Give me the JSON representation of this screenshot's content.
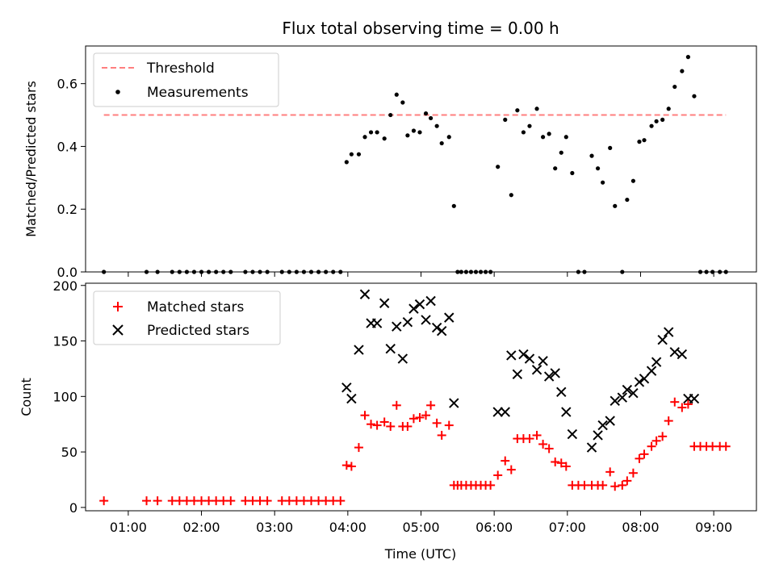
{
  "chart_data": [
    {
      "type": "scatter",
      "title": "Flux total observing time = 0.00 h",
      "xlabel": "",
      "ylabel": "Matched/Predicted stars",
      "xlim": [
        "00:25",
        "09:35"
      ],
      "ylim": [
        0,
        0.72
      ],
      "yticks": [
        0.0,
        0.2,
        0.4,
        0.6
      ],
      "ytick_labels": [
        "0.0",
        "0.2",
        "0.4",
        "0.6"
      ],
      "legend_position": "upper-left",
      "threshold": {
        "name": "Threshold",
        "y": 0.5,
        "x_start": "00:40",
        "x_end": "09:10",
        "color": "#ff7f7f",
        "style": "dashed"
      },
      "series": [
        {
          "name": "Measurements",
          "color": "#000000",
          "marker": "dot",
          "x": [
            "00:40",
            "01:15",
            "01:24",
            "01:36",
            "01:42",
            "01:48",
            "01:54",
            "02:00",
            "02:06",
            "02:12",
            "02:18",
            "02:24",
            "02:36",
            "02:42",
            "02:48",
            "02:54",
            "03:06",
            "03:12",
            "03:18",
            "03:24",
            "03:30",
            "03:36",
            "03:42",
            "03:48",
            "03:54",
            "03:59",
            "04:03",
            "04:09",
            "04:14",
            "04:19",
            "04:24",
            "04:30",
            "04:35",
            "04:40",
            "04:45",
            "04:49",
            "04:54",
            "04:59",
            "05:04",
            "05:08",
            "05:13",
            "05:17",
            "05:23",
            "05:27",
            "05:30",
            "05:33",
            "05:37",
            "05:41",
            "05:45",
            "05:49",
            "05:53",
            "05:57",
            "06:03",
            "06:09",
            "06:14",
            "06:19",
            "06:24",
            "06:29",
            "06:35",
            "06:40",
            "06:45",
            "06:50",
            "06:55",
            "06:59",
            "07:04",
            "07:09",
            "07:14",
            "07:20",
            "07:25",
            "07:29",
            "07:35",
            "07:39",
            "07:45",
            "07:49",
            "07:54",
            "07:59",
            "08:03",
            "08:09",
            "08:13",
            "08:18",
            "08:23",
            "08:28",
            "08:34",
            "08:39",
            "08:44",
            "08:49",
            "08:54",
            "08:59",
            "09:05",
            "09:10"
          ],
          "y": [
            0.0,
            0.0,
            0.0,
            0.0,
            0.0,
            0.0,
            0.0,
            0.0,
            0.0,
            0.0,
            0.0,
            0.0,
            0.0,
            0.0,
            0.0,
            0.0,
            0.0,
            0.0,
            0.0,
            0.0,
            0.0,
            0.0,
            0.0,
            0.0,
            0.0,
            0.35,
            0.375,
            0.375,
            0.43,
            0.445,
            0.445,
            0.425,
            0.5,
            0.565,
            0.54,
            0.435,
            0.45,
            0.445,
            0.505,
            0.49,
            0.465,
            0.41,
            0.43,
            0.21,
            0.0,
            0.0,
            0.0,
            0.0,
            0.0,
            0.0,
            0.0,
            0.0,
            0.335,
            0.485,
            0.245,
            0.515,
            0.445,
            0.465,
            0.52,
            0.43,
            0.44,
            0.33,
            0.38,
            0.43,
            0.315,
            0.0,
            0.0,
            0.37,
            0.33,
            0.285,
            0.395,
            0.21,
            0.0,
            0.23,
            0.29,
            0.415,
            0.42,
            0.465,
            0.48,
            0.485,
            0.52,
            0.59,
            0.64,
            0.685,
            0.56,
            0.0,
            0.0,
            0.0,
            0.0,
            0.0
          ]
        }
      ]
    },
    {
      "type": "scatter",
      "title": "",
      "xlabel": "Time (UTC)",
      "ylabel": "Count",
      "xlim": [
        "00:25",
        "09:35"
      ],
      "ylim": [
        -3,
        202
      ],
      "xticks": [
        "01:00",
        "02:00",
        "03:00",
        "04:00",
        "05:00",
        "06:00",
        "07:00",
        "08:00",
        "09:00"
      ],
      "yticks": [
        0,
        50,
        100,
        150,
        200
      ],
      "ytick_labels": [
        "0",
        "50",
        "100",
        "150",
        "200"
      ],
      "legend_position": "upper-left",
      "series": [
        {
          "name": "Matched stars",
          "color": "#ff0000",
          "marker": "plus",
          "x": [
            "00:40",
            "01:15",
            "01:24",
            "01:36",
            "01:42",
            "01:48",
            "01:54",
            "02:00",
            "02:06",
            "02:12",
            "02:18",
            "02:24",
            "02:36",
            "02:42",
            "02:48",
            "02:54",
            "03:06",
            "03:12",
            "03:18",
            "03:24",
            "03:30",
            "03:36",
            "03:42",
            "03:48",
            "03:54",
            "03:59",
            "04:03",
            "04:09",
            "04:14",
            "04:19",
            "04:24",
            "04:30",
            "04:35",
            "04:40",
            "04:45",
            "04:49",
            "04:54",
            "04:59",
            "05:04",
            "05:08",
            "05:13",
            "05:17",
            "05:23",
            "05:27",
            "05:30",
            "05:33",
            "05:37",
            "05:41",
            "05:45",
            "05:49",
            "05:53",
            "05:57",
            "06:03",
            "06:09",
            "06:14",
            "06:19",
            "06:24",
            "06:29",
            "06:35",
            "06:40",
            "06:45",
            "06:50",
            "06:55",
            "06:59",
            "07:04",
            "07:09",
            "07:14",
            "07:20",
            "07:25",
            "07:29",
            "07:35",
            "07:39",
            "07:45",
            "07:49",
            "07:54",
            "07:59",
            "08:03",
            "08:09",
            "08:13",
            "08:18",
            "08:23",
            "08:28",
            "08:34",
            "08:39",
            "08:44",
            "08:49",
            "08:54",
            "08:59",
            "09:05",
            "09:10"
          ],
          "y": [
            6,
            6,
            6,
            6,
            6,
            6,
            6,
            6,
            6,
            6,
            6,
            6,
            6,
            6,
            6,
            6,
            6,
            6,
            6,
            6,
            6,
            6,
            6,
            6,
            6,
            38,
            37,
            54,
            83,
            75,
            74,
            77,
            73,
            92,
            73,
            73,
            80,
            81,
            83,
            92,
            76,
            65,
            74,
            20,
            20,
            20,
            20,
            20,
            20,
            20,
            20,
            20,
            29,
            42,
            34,
            62,
            62,
            62,
            65,
            57,
            53,
            41,
            40,
            37,
            20,
            20,
            20,
            20,
            20,
            20,
            32,
            19,
            20,
            24,
            31,
            44,
            48,
            55,
            60,
            64,
            78,
            95,
            90,
            93,
            55,
            55,
            55,
            55,
            55,
            55
          ]
        },
        {
          "name": "Predicted stars",
          "color": "#000000",
          "marker": "x",
          "x": [
            "03:59",
            "04:03",
            "04:09",
            "04:14",
            "04:19",
            "04:24",
            "04:30",
            "04:35",
            "04:40",
            "04:45",
            "04:49",
            "04:54",
            "04:59",
            "05:04",
            "05:08",
            "05:13",
            "05:17",
            "05:23",
            "05:27",
            "06:03",
            "06:09",
            "06:14",
            "06:19",
            "06:24",
            "06:29",
            "06:35",
            "06:40",
            "06:45",
            "06:50",
            "06:55",
            "06:59",
            "07:04",
            "07:20",
            "07:25",
            "07:29",
            "07:35",
            "07:39",
            "07:45",
            "07:49",
            "07:54",
            "07:59",
            "08:03",
            "08:09",
            "08:13",
            "08:18",
            "08:23",
            "08:28",
            "08:34",
            "08:39",
            "08:44"
          ],
          "y": [
            108,
            98,
            142,
            192,
            166,
            166,
            184,
            143,
            163,
            134,
            167,
            179,
            183,
            169,
            186,
            162,
            159,
            171,
            94,
            86,
            86,
            137,
            120,
            138,
            134,
            124,
            132,
            118,
            121,
            104,
            86,
            66,
            54,
            65,
            74,
            78,
            96,
            99,
            106,
            103,
            113,
            116,
            123,
            131,
            151,
            158,
            140,
            138,
            98,
            98
          ]
        }
      ]
    }
  ]
}
